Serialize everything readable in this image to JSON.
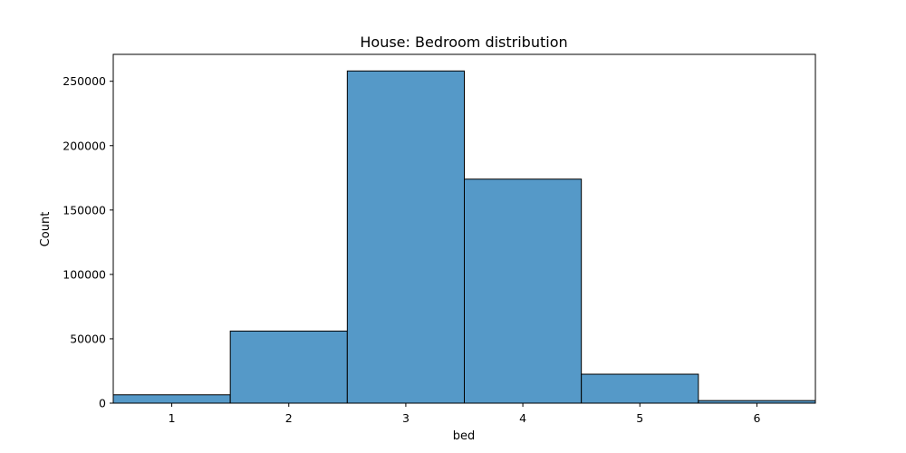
{
  "chart_data": {
    "type": "bar",
    "title": "House: Bedroom distribution",
    "xlabel": "bed",
    "ylabel": "Count",
    "categories": [
      "1",
      "2",
      "3",
      "4",
      "5",
      "6"
    ],
    "values": [
      6500,
      56000,
      258000,
      174000,
      22500,
      2000
    ],
    "xlim": [
      0.5,
      6.5
    ],
    "ylim": [
      0,
      270900
    ],
    "yticks": [
      0,
      50000,
      100000,
      150000,
      200000,
      250000
    ],
    "xticks": [
      1,
      2,
      3,
      4,
      5,
      6
    ],
    "bar_color": "#5599c8",
    "bar_edge_color": "#000000",
    "grid": false,
    "legend": "none"
  }
}
